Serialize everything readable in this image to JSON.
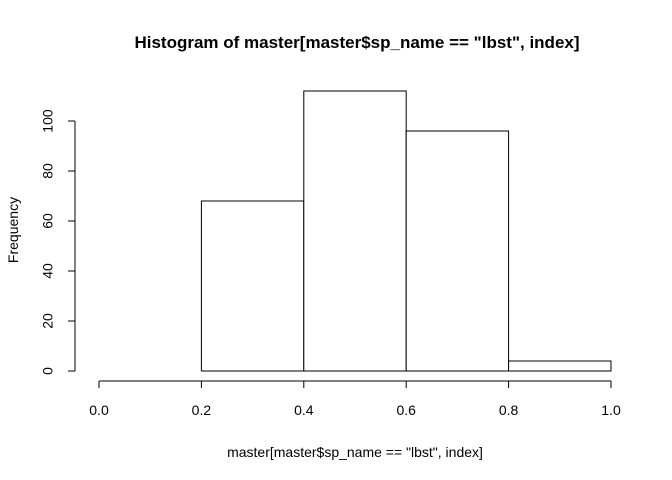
{
  "chart_data": {
    "type": "bar",
    "title": "Histogram of master[master$sp_name == \"lbst\", index]",
    "xlabel": "master[master$sp_name == \"lbst\", index]",
    "ylabel": "Frequency",
    "bins": [
      {
        "x0": 0.0,
        "x1": 0.2,
        "count": 0
      },
      {
        "x0": 0.2,
        "x1": 0.4,
        "count": 68
      },
      {
        "x0": 0.4,
        "x1": 0.6,
        "count": 112
      },
      {
        "x0": 0.6,
        "x1": 0.8,
        "count": 96
      },
      {
        "x0": 0.8,
        "x1": 1.0,
        "count": 4
      }
    ],
    "xlim": [
      0.0,
      1.0
    ],
    "ylim": [
      0,
      112
    ],
    "x_ticks": [
      "0.0",
      "0.2",
      "0.4",
      "0.6",
      "0.8",
      "1.0"
    ],
    "y_ticks": [
      "0",
      "20",
      "40",
      "60",
      "80",
      "100"
    ],
    "grid": false,
    "bar_fill": "#ffffff",
    "bar_stroke": "#000000"
  }
}
